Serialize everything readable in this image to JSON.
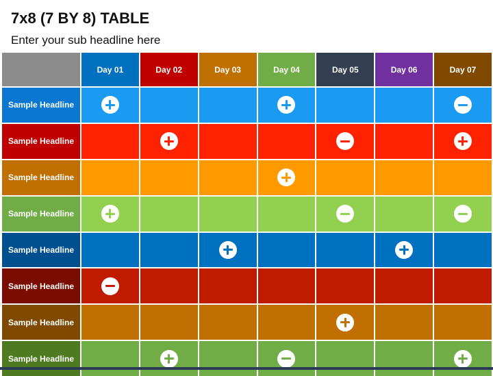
{
  "page": {
    "title": "7x8 (7 BY 8) TABLE",
    "subtitle": "Enter your sub headline here"
  },
  "table": {
    "corner_color": "#8c8c8c",
    "days": [
      {
        "label": "Day 01",
        "color": "#0070c0"
      },
      {
        "label": "Day 02",
        "color": "#c00000"
      },
      {
        "label": "Day 03",
        "color": "#c07000"
      },
      {
        "label": "Day 04",
        "color": "#70ad47"
      },
      {
        "label": "Day 05",
        "color": "#333f50"
      },
      {
        "label": "Day 06",
        "color": "#7030a0"
      },
      {
        "label": "Day 07",
        "color": "#7f4a00"
      }
    ],
    "rows": [
      {
        "label": "Sample Headline",
        "header_color": "#0a78d0",
        "fill_color": "#1a9af0",
        "icon_color": "#1a9af0",
        "cells": [
          "plus",
          "",
          "",
          "plus",
          "",
          "",
          "minus"
        ]
      },
      {
        "label": "Sample Headline",
        "header_color": "#c00000",
        "fill_color": "#ff2200",
        "icon_color": "#ff2200",
        "cells": [
          "",
          "plus",
          "",
          "",
          "minus",
          "",
          "plus"
        ]
      },
      {
        "label": "Sample Headline",
        "header_color": "#c07000",
        "fill_color": "#ff9900",
        "icon_color": "#ff9900",
        "cells": [
          "",
          "",
          "",
          "plus",
          "",
          "",
          ""
        ]
      },
      {
        "label": "Sample Headline",
        "header_color": "#70ad47",
        "fill_color": "#92d050",
        "icon_color": "#92d050",
        "cells": [
          "plus",
          "",
          "",
          "",
          "minus",
          "",
          "minus"
        ]
      },
      {
        "label": "Sample Headline",
        "header_color": "#004f8f",
        "fill_color": "#0070c0",
        "icon_color": "#0070c0",
        "cells": [
          "",
          "",
          "plus",
          "",
          "",
          "plus",
          ""
        ]
      },
      {
        "label": "Sample Headline",
        "header_color": "#7b0c00",
        "fill_color": "#c01a00",
        "icon_color": "#c01a00",
        "cells": [
          "minus",
          "",
          "",
          "",
          "",
          "",
          ""
        ]
      },
      {
        "label": "Sample Headline",
        "header_color": "#7f4a00",
        "fill_color": "#c07000",
        "icon_color": "#c07000",
        "cells": [
          "",
          "",
          "",
          "",
          "plus",
          "",
          ""
        ]
      },
      {
        "label": "Sample Headline",
        "header_color": "#4e7a20",
        "fill_color": "#70ad47",
        "icon_color": "#70ad47",
        "cells": [
          "",
          "plus",
          "",
          "minus",
          "",
          "",
          "plus"
        ]
      }
    ]
  }
}
